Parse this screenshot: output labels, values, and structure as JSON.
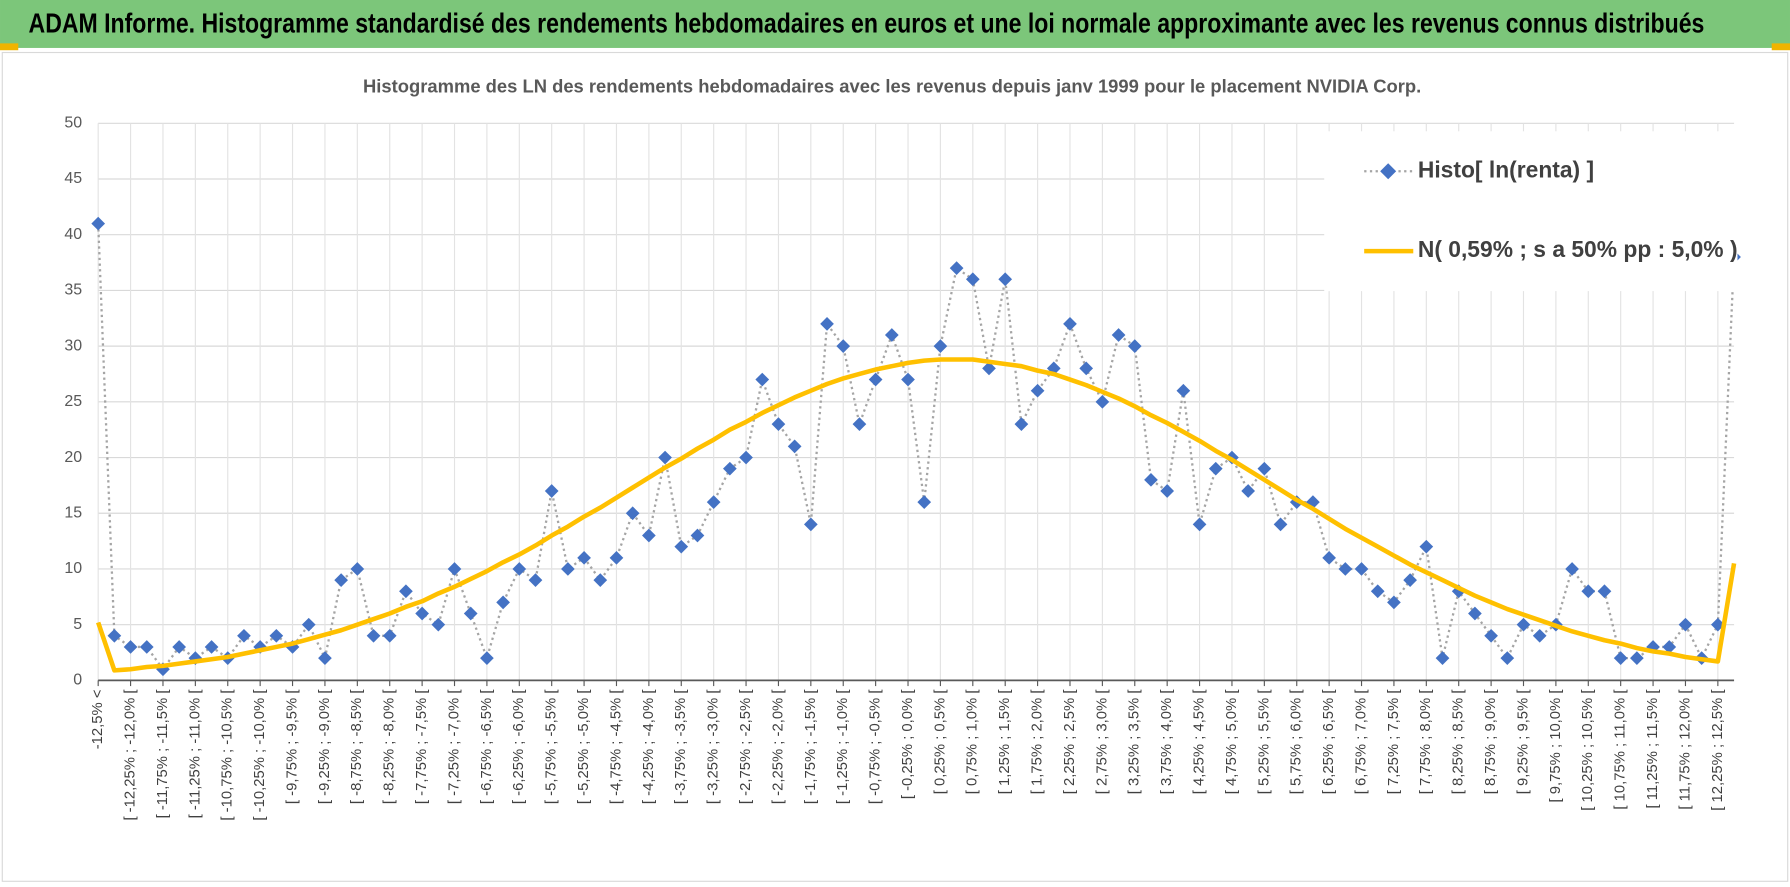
{
  "header": "ADAM Informe. Histogramme standardisé des rendements hebdomadaires en euros et une loi normale approximante avec les revenus connus distribués",
  "chart_data": {
    "type": "line",
    "title": "Histogramme des LN des rendements hebdomadaires avec les revenus depuis janv 1999 pour le placement NVIDIA Corp.",
    "categories": [
      "-12,5% <",
      null,
      "[ -12,25% ; -12,0% [",
      null,
      "[ -11,75% ; -11,5% [",
      null,
      "[ -11,25% ; -11,0% [",
      null,
      "[ -10,75% ; -10,5% [",
      null,
      "[ -10,25% ; -10,0% [",
      null,
      "[ -9,75% ; -9,5% [",
      null,
      "[ -9,25% ; -9,0% [",
      null,
      "[ -8,75% ; -8,5% [",
      null,
      "[ -8,25% ; -8,0% [",
      null,
      "[ -7,75% ; -7,5% [",
      null,
      "[ -7,25% ; -7,0% [",
      null,
      "[ -6,75% ; -6,5% [",
      null,
      "[ -6,25% ; -6,0% [",
      null,
      "[ -5,75% ; -5,5% [",
      null,
      "[ -5,25% ; -5,0% [",
      null,
      "[ -4,75% ; -4,5% [",
      null,
      "[ -4,25% ; -4,0% [",
      null,
      "[ -3,75% ; -3,5% [",
      null,
      "[ -3,25% ; -3,0% [",
      null,
      "[ -2,75% ; -2,5% [",
      null,
      "[ -2,25% ; -2,0% [",
      null,
      "[ -1,75% ; -1,5% [",
      null,
      "[ -1,25% ; -1,0% [",
      null,
      "[ -0,75% ; -0,5% [",
      null,
      "[ -0,25% ; 0,0% [",
      null,
      "[ 0,25% ; 0,5% [",
      null,
      "[ 0,75% ; 1,0% [",
      null,
      "[ 1,25% ; 1,5% [",
      null,
      "[ 1,75% ; 2,0% [",
      null,
      "[ 2,25% ; 2,5% [",
      null,
      "[ 2,75% ; 3,0% [",
      null,
      "[ 3,25% ; 3,5% [",
      null,
      "[ 3,75% ; 4,0% [",
      null,
      "[ 4,25% ; 4,5% [",
      null,
      "[ 4,75% ; 5,0% [",
      null,
      "[ 5,25% ; 5,5% [",
      null,
      "[ 5,75% ; 6,0% [",
      null,
      "[ 6,25% ; 6,5% [",
      null,
      "[ 6,75% ; 7,0% [",
      null,
      "[ 7,25% ; 7,5% [",
      null,
      "[ 7,75% ; 8,0% [",
      null,
      "[ 8,25% ; 8,5% [",
      null,
      "[ 8,75% ; 9,0% [",
      null,
      "[ 9,25% ; 9,5% [",
      null,
      "[ 9,75% ; 10,0% [",
      null,
      "[ 10,25% ; 10,5% [",
      null,
      "[ 10,75% ; 11,0% [",
      null,
      "[ 11,25% ; 11,5% [",
      null,
      "[ 11,75% ; 12,0% [",
      null,
      "[ 12,25% ; 12,5% [",
      null
    ],
    "series": [
      {
        "name": "Histo[ ln(renta) ]",
        "color": "#4472c4",
        "line_color": "#a5a5a5",
        "marker": "diamond",
        "values": [
          41,
          4,
          3,
          3,
          1,
          3,
          2,
          3,
          2,
          4,
          3,
          4,
          3,
          5,
          2,
          9,
          10,
          4,
          4,
          8,
          6,
          5,
          10,
          6,
          2,
          7,
          10,
          9,
          17,
          10,
          11,
          9,
          11,
          15,
          13,
          20,
          12,
          13,
          16,
          19,
          20,
          27,
          23,
          21,
          14,
          32,
          30,
          23,
          27,
          31,
          27,
          16,
          30,
          37,
          36,
          28,
          36,
          23,
          26,
          28,
          32,
          28,
          25,
          31,
          30,
          18,
          17,
          26,
          14,
          19,
          20,
          17,
          19,
          14,
          16,
          16,
          11,
          10,
          10,
          8,
          7,
          9,
          12,
          2,
          8,
          6,
          4,
          2,
          5,
          4,
          5,
          10,
          8,
          8,
          2,
          2,
          3,
          3,
          5,
          2,
          5,
          38
        ]
      },
      {
        "name": "N( 0,59% ; s a 50% pp : 5,0% )",
        "color": "#ffc000",
        "values": [
          5.2,
          0.9,
          1.0,
          1.2,
          1.3,
          1.5,
          1.7,
          1.9,
          2.1,
          2.4,
          2.7,
          3.0,
          3.3,
          3.7,
          4.1,
          4.5,
          5.0,
          5.5,
          6.0,
          6.6,
          7.1,
          7.8,
          8.4,
          9.1,
          9.8,
          10.6,
          11.3,
          12.1,
          13.0,
          13.8,
          14.7,
          15.5,
          16.4,
          17.3,
          18.2,
          19.1,
          19.9,
          20.8,
          21.6,
          22.5,
          23.2,
          24.0,
          24.7,
          25.4,
          26.0,
          26.6,
          27.1,
          27.5,
          27.9,
          28.2,
          28.5,
          28.7,
          28.8,
          28.8,
          28.8,
          28.6,
          28.4,
          28.2,
          27.8,
          27.5,
          27.0,
          26.5,
          25.9,
          25.3,
          24.6,
          23.8,
          23.1,
          22.3,
          21.5,
          20.6,
          19.8,
          18.9,
          18.0,
          17.1,
          16.2,
          15.4,
          14.5,
          13.6,
          12.8,
          12.0,
          11.2,
          10.4,
          9.7,
          9.0,
          8.3,
          7.6,
          7.0,
          6.4,
          5.9,
          5.4,
          4.9,
          4.4,
          4.0,
          3.6,
          3.3,
          2.9,
          2.6,
          2.4,
          2.1,
          1.9,
          1.7,
          10.5
        ]
      }
    ],
    "ylim": [
      0,
      50
    ],
    "yticks": [
      0,
      5,
      10,
      15,
      20,
      25,
      30,
      35,
      40,
      45,
      50
    ],
    "grid": true,
    "legend": "top-right"
  }
}
